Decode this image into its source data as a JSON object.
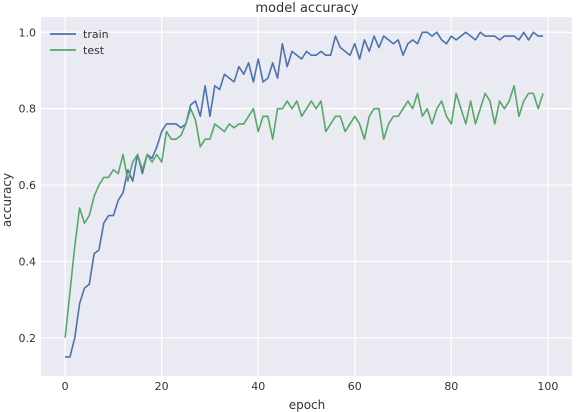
{
  "chart_data": {
    "type": "line",
    "title": "model accuracy",
    "xlabel": "epoch",
    "ylabel": "accuracy",
    "xlim": [
      -5,
      105
    ],
    "ylim": [
      0.1,
      1.04
    ],
    "xticks": [
      "0",
      "20",
      "40",
      "60",
      "80",
      "100"
    ],
    "yticks": [
      "0.2",
      "0.4",
      "0.6",
      "0.8",
      "1.0"
    ],
    "grid": true,
    "legend": "top-left",
    "colors": {
      "train": "#4c72b0",
      "test": "#55a868",
      "plot_bg": "#eaeaf2",
      "grid": "#ffffff"
    },
    "series": [
      {
        "name": "train",
        "values": [
          0.15,
          0.15,
          0.2,
          0.29,
          0.33,
          0.34,
          0.42,
          0.43,
          0.5,
          0.52,
          0.52,
          0.56,
          0.58,
          0.64,
          0.61,
          0.68,
          0.63,
          0.68,
          0.67,
          0.7,
          0.74,
          0.76,
          0.76,
          0.76,
          0.75,
          0.76,
          0.81,
          0.82,
          0.78,
          0.86,
          0.78,
          0.86,
          0.85,
          0.89,
          0.88,
          0.87,
          0.91,
          0.89,
          0.92,
          0.87,
          0.93,
          0.87,
          0.88,
          0.92,
          0.88,
          0.97,
          0.91,
          0.95,
          0.94,
          0.93,
          0.95,
          0.94,
          0.94,
          0.95,
          0.94,
          0.94,
          0.99,
          0.96,
          0.95,
          0.94,
          0.97,
          0.93,
          0.98,
          0.95,
          0.99,
          0.96,
          0.99,
          0.98,
          0.97,
          0.98,
          0.94,
          0.97,
          0.98,
          0.97,
          1.0,
          1.0,
          0.99,
          1.0,
          0.98,
          0.97,
          0.99,
          0.98,
          0.99,
          1.0,
          0.99,
          0.98,
          1.0,
          0.99,
          0.99,
          0.99,
          0.98,
          0.99,
          0.99,
          0.99,
          0.98,
          1.0,
          0.98,
          1.0,
          0.99,
          0.99
        ]
      },
      {
        "name": "test",
        "values": [
          0.2,
          0.32,
          0.44,
          0.54,
          0.5,
          0.52,
          0.57,
          0.6,
          0.62,
          0.62,
          0.64,
          0.63,
          0.68,
          0.61,
          0.66,
          0.68,
          0.64,
          0.68,
          0.66,
          0.68,
          0.66,
          0.74,
          0.72,
          0.72,
          0.73,
          0.76,
          0.8,
          0.77,
          0.7,
          0.72,
          0.72,
          0.76,
          0.75,
          0.74,
          0.76,
          0.75,
          0.76,
          0.76,
          0.78,
          0.8,
          0.74,
          0.78,
          0.78,
          0.72,
          0.8,
          0.8,
          0.82,
          0.8,
          0.82,
          0.78,
          0.8,
          0.82,
          0.8,
          0.82,
          0.74,
          0.76,
          0.78,
          0.78,
          0.74,
          0.76,
          0.78,
          0.76,
          0.72,
          0.78,
          0.8,
          0.8,
          0.72,
          0.76,
          0.78,
          0.78,
          0.8,
          0.82,
          0.8,
          0.84,
          0.78,
          0.8,
          0.76,
          0.8,
          0.82,
          0.78,
          0.76,
          0.84,
          0.8,
          0.76,
          0.82,
          0.76,
          0.8,
          0.84,
          0.82,
          0.76,
          0.82,
          0.8,
          0.82,
          0.86,
          0.78,
          0.82,
          0.84,
          0.84,
          0.8,
          0.84
        ]
      }
    ]
  }
}
